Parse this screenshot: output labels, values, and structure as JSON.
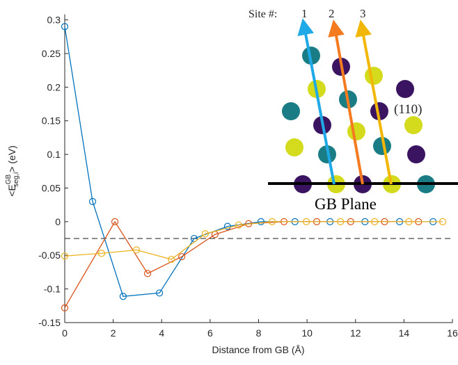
{
  "chart_data": {
    "type": "line",
    "xlabel": "Distance from GB (Å)",
    "ylabel": {
      "base": "<E",
      "sup": "GB",
      "sub": "seg,i",
      "end": "> (eV)"
    },
    "xlim": [
      0,
      16
    ],
    "xticks": [
      0,
      2,
      4,
      6,
      8,
      10,
      12,
      14,
      16
    ],
    "ylim": [
      -0.15,
      0.3
    ],
    "yticks": [
      -0.15,
      -0.1,
      -0.05,
      0,
      0.05,
      0.1,
      0.15,
      0.2,
      0.25,
      0.3
    ],
    "reference_line": -0.025,
    "series": [
      {
        "name": "1",
        "color": "#0072bd",
        "x": [
          0,
          1.15,
          2.41,
          3.91,
          5.34,
          6.72,
          8.1,
          9.5,
          10.95,
          12.39,
          13.82,
          15.2
        ],
        "values": [
          0.29,
          0.03,
          -0.111,
          -0.106,
          -0.025,
          -0.007,
          0,
          0,
          0,
          0,
          0,
          0
        ]
      },
      {
        "name": "2",
        "color": "#d95319",
        "x": [
          0,
          2.07,
          3.42,
          4.83,
          6.2,
          7.59,
          9.05,
          10.4,
          11.8,
          13.2,
          14.6
        ],
        "values": [
          -0.128,
          0,
          -0.077,
          -0.052,
          -0.019,
          -0.003,
          0,
          0,
          0,
          0,
          0
        ]
      },
      {
        "name": "3",
        "color": "#edb120",
        "x": [
          0,
          1.52,
          2.96,
          4.4,
          5.8,
          7.18,
          8.56,
          9.97,
          11.38,
          12.79,
          14.2,
          15.6
        ],
        "values": [
          -0.051,
          -0.047,
          -0.042,
          -0.056,
          -0.018,
          -0.005,
          0,
          0,
          0,
          0,
          0,
          0
        ]
      }
    ],
    "inset": {
      "site_label": "Site #:",
      "plane": "(110)",
      "gb_label": "GB Plane"
    }
  }
}
